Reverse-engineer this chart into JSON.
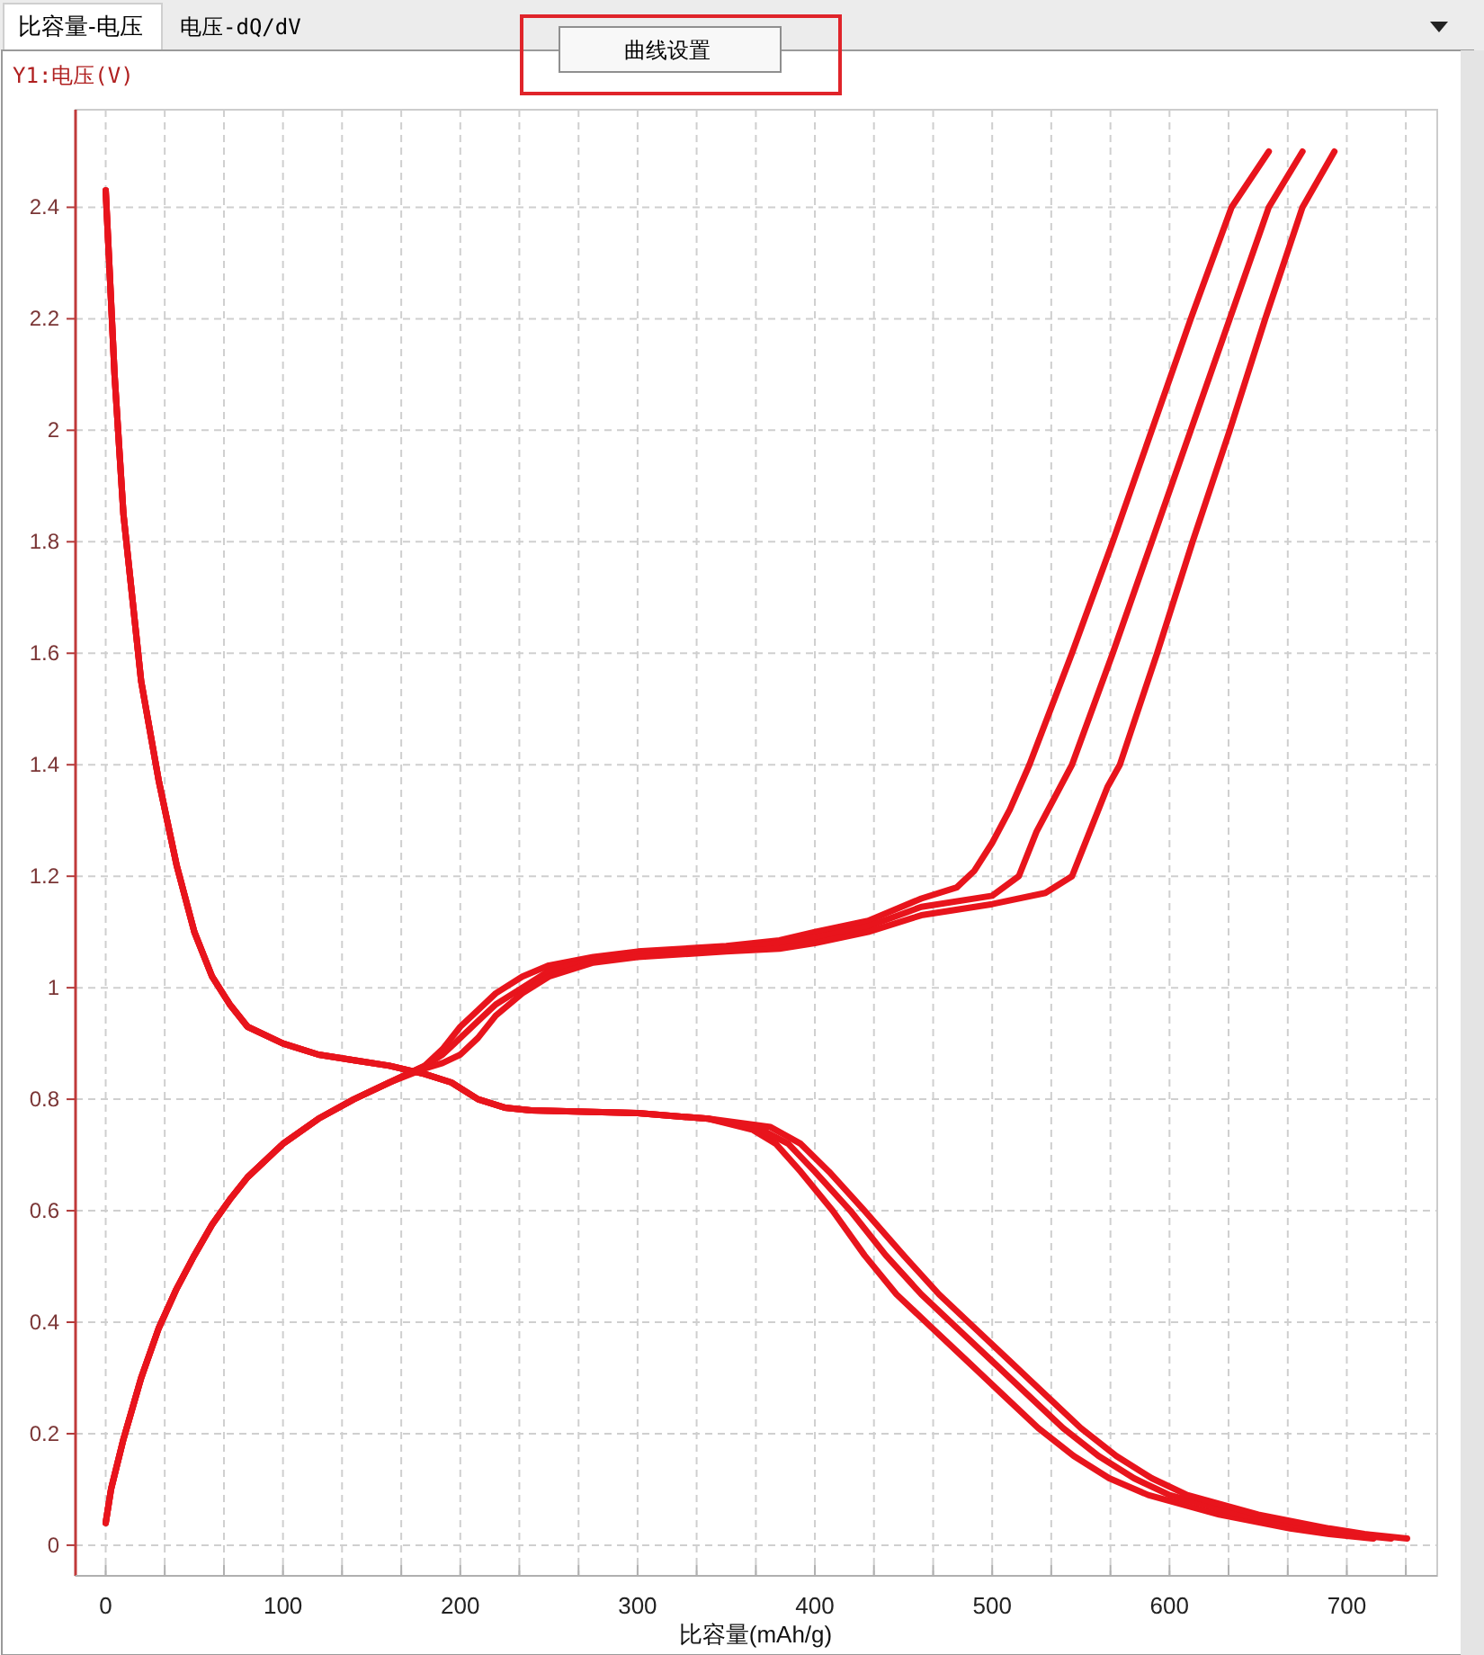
{
  "chart_data": {
    "type": "line",
    "title": "比容量-电压",
    "ylabel": "Y1:电压(V)",
    "xlabel": "比容量(mAh/g)",
    "annotations": [
      "电压-dQ/dV",
      "曲线设置"
    ],
    "xlim": [
      -17,
      751
    ],
    "ylim": [
      -0.055,
      2.575
    ],
    "xticks": [
      0,
      {
        "value": 33.3,
        "label": null
      },
      {
        "value": 66.7,
        "label": null
      },
      100,
      {
        "value": 133.3,
        "label": null
      },
      {
        "value": 166.7,
        "label": null
      },
      200,
      {
        "value": 233.3,
        "label": null
      },
      {
        "value": 266.7,
        "label": null
      },
      300,
      {
        "value": 333.3,
        "label": null
      },
      {
        "value": 366.7,
        "label": null
      },
      400,
      {
        "value": 433.3,
        "label": null
      },
      {
        "value": 466.7,
        "label": null
      },
      500,
      {
        "value": 533.3,
        "label": null
      },
      {
        "value": 566.7,
        "label": null
      },
      600,
      {
        "value": 633.3,
        "label": null
      },
      {
        "value": 666.7,
        "label": null
      },
      700,
      {
        "value": 733.3,
        "label": null
      }
    ],
    "yticks": [
      0,
      0.2,
      0.4,
      0.6,
      0.8,
      1,
      1.2,
      1.4,
      1.6,
      1.8,
      2,
      2.2,
      2.4
    ],
    "grid": true,
    "series": [
      {
        "color": "#e8141c",
        "x": [
          0,
          2,
          5,
          10,
          20,
          30,
          40,
          50,
          60,
          70,
          80,
          100,
          120,
          140,
          160,
          180,
          195,
          210,
          225,
          240,
          300,
          340,
          365,
          378,
          392,
          410,
          428,
          446,
          466,
          486,
          506,
          526,
          546,
          566,
          588,
          628,
          668,
          690,
          715
        ],
        "values": [
          2.43,
          2.3,
          2.1,
          1.85,
          1.55,
          1.37,
          1.22,
          1.1,
          1.02,
          0.97,
          0.93,
          0.9,
          0.88,
          0.87,
          0.86,
          0.845,
          0.83,
          0.8,
          0.785,
          0.78,
          0.775,
          0.765,
          0.745,
          0.72,
          0.67,
          0.6,
          0.52,
          0.45,
          0.39,
          0.33,
          0.27,
          0.21,
          0.16,
          0.12,
          0.09,
          0.055,
          0.03,
          0.02,
          0.012
        ]
      },
      {
        "color": "#e8141c",
        "x": [
          0,
          2,
          5,
          10,
          20,
          30,
          40,
          50,
          60,
          70,
          80,
          100,
          120,
          140,
          160,
          180,
          195,
          210,
          225,
          240,
          300,
          340,
          370,
          385,
          400,
          420,
          440,
          460,
          480,
          500,
          520,
          540,
          560,
          580,
          600,
          640,
          680,
          700,
          725
        ],
        "values": [
          2.43,
          2.3,
          2.1,
          1.85,
          1.55,
          1.37,
          1.22,
          1.1,
          1.02,
          0.97,
          0.93,
          0.9,
          0.88,
          0.87,
          0.86,
          0.845,
          0.83,
          0.8,
          0.785,
          0.78,
          0.775,
          0.765,
          0.745,
          0.72,
          0.67,
          0.6,
          0.52,
          0.45,
          0.39,
          0.33,
          0.27,
          0.21,
          0.16,
          0.12,
          0.09,
          0.055,
          0.03,
          0.02,
          0.012
        ]
      },
      {
        "color": "#e8141c",
        "x": [
          0,
          2,
          5,
          10,
          20,
          30,
          40,
          50,
          60,
          70,
          80,
          100,
          120,
          140,
          160,
          180,
          195,
          210,
          225,
          240,
          300,
          340,
          375,
          392,
          408,
          428,
          450,
          470,
          490,
          510,
          530,
          550,
          570,
          590,
          610,
          650,
          690,
          710,
          734
        ],
        "values": [
          2.43,
          2.3,
          2.1,
          1.85,
          1.55,
          1.37,
          1.22,
          1.1,
          1.02,
          0.97,
          0.93,
          0.9,
          0.88,
          0.87,
          0.86,
          0.845,
          0.83,
          0.8,
          0.785,
          0.78,
          0.775,
          0.765,
          0.75,
          0.72,
          0.67,
          0.6,
          0.52,
          0.45,
          0.39,
          0.33,
          0.27,
          0.21,
          0.16,
          0.12,
          0.09,
          0.055,
          0.03,
          0.02,
          0.012
        ]
      },
      {
        "color": "#e8141c",
        "x": [
          0,
          3,
          10,
          20,
          30,
          40,
          50,
          60,
          70,
          80,
          100,
          120,
          140,
          160,
          180,
          190,
          200,
          210,
          220,
          235,
          250,
          275,
          300,
          350,
          380,
          400,
          430,
          460,
          480,
          490,
          500,
          510,
          521,
          545,
          568,
          590,
          612,
          635,
          656
        ],
        "values": [
          0.04,
          0.1,
          0.19,
          0.3,
          0.39,
          0.46,
          0.52,
          0.575,
          0.62,
          0.66,
          0.72,
          0.765,
          0.8,
          0.83,
          0.86,
          0.89,
          0.93,
          0.96,
          0.99,
          1.02,
          1.04,
          1.055,
          1.065,
          1.075,
          1.085,
          1.1,
          1.12,
          1.16,
          1.18,
          1.21,
          1.26,
          1.32,
          1.4,
          1.6,
          1.8,
          2.0,
          2.2,
          2.4,
          2.5
        ]
      },
      {
        "color": "#e8141c",
        "x": [
          0,
          3,
          10,
          20,
          30,
          40,
          50,
          60,
          70,
          80,
          100,
          120,
          140,
          160,
          180,
          190,
          200,
          210,
          220,
          235,
          250,
          275,
          300,
          350,
          380,
          400,
          430,
          460,
          500,
          515,
          525,
          545,
          568,
          590,
          612,
          634,
          656,
          675
        ],
        "values": [
          0.04,
          0.1,
          0.19,
          0.3,
          0.39,
          0.46,
          0.52,
          0.575,
          0.62,
          0.66,
          0.72,
          0.765,
          0.8,
          0.83,
          0.86,
          0.88,
          0.91,
          0.94,
          0.97,
          1.0,
          1.03,
          1.05,
          1.06,
          1.07,
          1.08,
          1.09,
          1.11,
          1.145,
          1.165,
          1.2,
          1.28,
          1.4,
          1.6,
          1.8,
          2.0,
          2.2,
          2.4,
          2.5
        ]
      },
      {
        "color": "#e8141c",
        "x": [
          0,
          3,
          10,
          20,
          30,
          40,
          50,
          60,
          70,
          80,
          100,
          120,
          140,
          160,
          180,
          190,
          200,
          210,
          220,
          235,
          250,
          275,
          300,
          350,
          380,
          400,
          430,
          460,
          500,
          530,
          545,
          555,
          565,
          572,
          593,
          613,
          634,
          654,
          675,
          693
        ],
        "values": [
          0.04,
          0.1,
          0.19,
          0.3,
          0.39,
          0.46,
          0.52,
          0.575,
          0.62,
          0.66,
          0.72,
          0.765,
          0.8,
          0.83,
          0.855,
          0.865,
          0.88,
          0.91,
          0.95,
          0.99,
          1.02,
          1.045,
          1.055,
          1.065,
          1.07,
          1.08,
          1.1,
          1.13,
          1.15,
          1.17,
          1.2,
          1.28,
          1.36,
          1.4,
          1.6,
          1.8,
          2.0,
          2.2,
          2.4,
          2.5
        ]
      }
    ]
  }
}
